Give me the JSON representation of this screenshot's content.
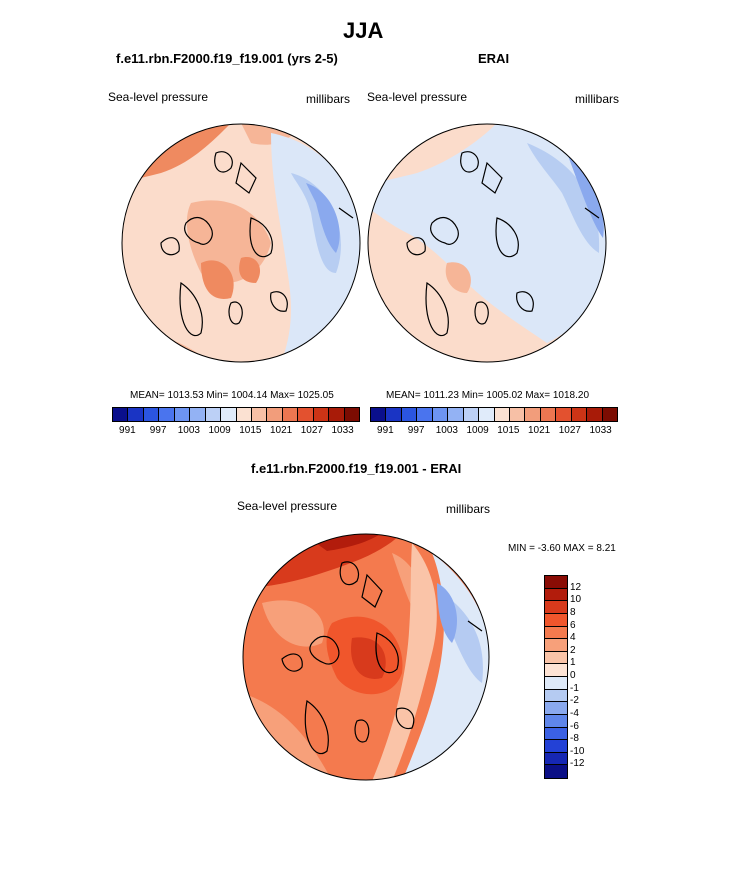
{
  "page": {
    "title": "JJA",
    "diff_title": "f.e11.rbn.F2000.f19_f19.001 - ERAI"
  },
  "panels": [
    {
      "title": "f.e11.rbn.F2000.f19_f19.001 (yrs 2-5)",
      "left_label": "Sea-level pressure",
      "right_label": "millibars",
      "stats": "MEAN= 1013.53  Min= 1004.14  Max= 1025.05",
      "colors": {
        "base": "#fbdccb",
        "warm1": "#f6b597",
        "warm2": "#ef8a60",
        "warm3": "#e2563a",
        "cool1": "#dbe7f8",
        "cool2": "#b7cdf2",
        "cool3": "#8aa9ee"
      }
    },
    {
      "title": "ERAI",
      "left_label": "Sea-level pressure",
      "right_label": "millibars",
      "stats": "MEAN= 1011.23  Min= 1005.02  Max= 1018.20",
      "colors": {
        "base": "#fbdccb",
        "warm1": "#f6b597",
        "warm2": "#ef8a60",
        "warm3": "#e2563a",
        "cool1": "#dbe7f8",
        "cool2": "#b7cdf2",
        "cool3": "#8aa9ee"
      }
    }
  ],
  "abs_colorbar": {
    "colors": [
      "#0a0f8c",
      "#1a34c4",
      "#2b55e0",
      "#4a74ee",
      "#6d94f2",
      "#93b2f4",
      "#bcd0f6",
      "#e0ebfa",
      "#fbe1d2",
      "#f7c0a6",
      "#f29d7b",
      "#ec7651",
      "#e3512f",
      "#cc3416",
      "#a81b08",
      "#7c0c02"
    ],
    "ticks": [
      "991",
      "997",
      "1003",
      "1009",
      "1015",
      "1021",
      "1027",
      "1033"
    ]
  },
  "diff_panel": {
    "left_label": "Sea-level pressure",
    "right_label": "millibars",
    "stats": "MIN =  -3.60 MAX =   8.21"
  },
  "diff_colorbar": {
    "colors": [
      "#8a0c05",
      "#b21c0c",
      "#d83a1c",
      "#f0562c",
      "#f47a4e",
      "#f7a07a",
      "#fac4a8",
      "#fde3d4",
      "#dee9f8",
      "#b5cbf2",
      "#8aa9ee",
      "#5f86ea",
      "#3b61e4",
      "#2341d6",
      "#1627b4",
      "#0b0f86"
    ],
    "labels": [
      "12",
      "10",
      "8",
      "6",
      "4",
      "2",
      "1",
      "0",
      "-1",
      "-2",
      "-4",
      "-6",
      "-8",
      "-10",
      "-12"
    ]
  }
}
